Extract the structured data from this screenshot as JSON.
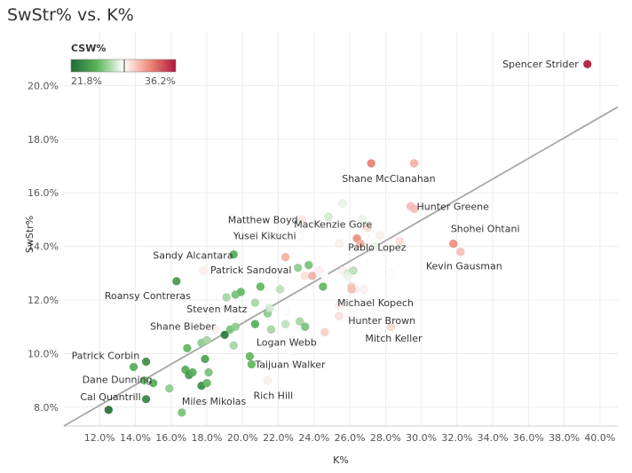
{
  "chart_data": {
    "type": "scatter",
    "title": "SwStr% vs. K%",
    "xlabel": "K%",
    "ylabel": "SwStr%",
    "xlim": [
      10.0,
      41.0
    ],
    "ylim": [
      7.3,
      22.0
    ],
    "x_ticks": [
      "12.0%",
      "14.0%",
      "16.0%",
      "18.0%",
      "20.0%",
      "22.0%",
      "24.0%",
      "26.0%",
      "28.0%",
      "30.0%",
      "32.0%",
      "34.0%",
      "36.0%",
      "38.0%",
      "40.0%"
    ],
    "y_ticks": [
      "8.0%",
      "10.0%",
      "12.0%",
      "14.0%",
      "16.0%",
      "18.0%",
      "20.0%"
    ],
    "grid": true,
    "trendline": {
      "x": [
        10.0,
        41.0
      ],
      "y": [
        7.3,
        19.2
      ]
    },
    "color_legend": {
      "title": "CSW%",
      "min_label": "21.8%",
      "max_label": "36.2%",
      "colors": [
        "#1e6b35",
        "#5bb55b",
        "#ffffff",
        "#f08a7a",
        "#b0163a"
      ],
      "placement": "top-left"
    },
    "labeled_points": [
      {
        "name": "Spencer Strider",
        "x": 39.3,
        "y": 20.8,
        "csw": 36.2
      },
      {
        "name": "Shane McClanahan",
        "x": 27.2,
        "y": 17.1,
        "csw": 33.0
      },
      {
        "name": "Hunter Greene",
        "x": 29.4,
        "y": 15.5,
        "csw": 31.0
      },
      {
        "name": "MacKenzie Gore",
        "x": 27.0,
        "y": 14.7,
        "csw": 30.2
      },
      {
        "name": "Matthew Boyd",
        "x": 23.3,
        "y": 15.0,
        "csw": 29.8
      },
      {
        "name": "Pablo Lopez",
        "x": 26.6,
        "y": 14.1,
        "csw": 31.5
      },
      {
        "name": "Shohei Ohtani",
        "x": 31.8,
        "y": 14.1,
        "csw": 32.5
      },
      {
        "name": "Yusei Kikuchi",
        "x": 23.2,
        "y": 14.4,
        "csw": 29.0
      },
      {
        "name": "Sandy Alcantara",
        "x": 19.5,
        "y": 13.7,
        "csw": 25.0
      },
      {
        "name": "Kevin Gausman",
        "x": 32.2,
        "y": 13.8,
        "csw": 31.0
      },
      {
        "name": "Patrick Sandoval",
        "x": 17.8,
        "y": 13.1,
        "csw": 29.5
      },
      {
        "name": "Roansy Contreras",
        "x": 16.3,
        "y": 12.7,
        "csw": 24.0
      },
      {
        "name": "Michael Kopech",
        "x": 26.1,
        "y": 12.4,
        "csw": 31.0
      },
      {
        "name": "Steven Matz",
        "x": 19.6,
        "y": 12.2,
        "csw": 26.0
      },
      {
        "name": "Hunter Brown",
        "x": 27.2,
        "y": 11.5,
        "csw": 29.0
      },
      {
        "name": "Shane Bieber",
        "x": 18.5,
        "y": 10.9,
        "csw": 29.5
      },
      {
        "name": "Mitch Keller",
        "x": 28.3,
        "y": 11.0,
        "csw": 30.2
      },
      {
        "name": "Logan Webb",
        "x": 24.6,
        "y": 10.8,
        "csw": 30.5
      },
      {
        "name": "Patrick Corbin",
        "x": 14.6,
        "y": 9.7,
        "csw": 23.5
      },
      {
        "name": "Taijuan Walker",
        "x": 20.5,
        "y": 9.6,
        "csw": 25.5
      },
      {
        "name": "Dane Dunning",
        "x": 15.0,
        "y": 8.9,
        "csw": 25.0
      },
      {
        "name": "Rich Hill",
        "x": 21.4,
        "y": 9.0,
        "csw": 29.5
      },
      {
        "name": "Cal Quantrill",
        "x": 12.5,
        "y": 7.9,
        "csw": 22.0
      },
      {
        "name": "Miles Mikolas",
        "x": 16.6,
        "y": 7.8,
        "csw": 26.0
      }
    ],
    "unlabeled_points": [
      {
        "x": 14.6,
        "y": 8.3,
        "csw": 23.0
      },
      {
        "x": 13.9,
        "y": 9.5,
        "csw": 25.0
      },
      {
        "x": 14.5,
        "y": 9.0,
        "csw": 25.5
      },
      {
        "x": 15.9,
        "y": 8.7,
        "csw": 26.5
      },
      {
        "x": 16.8,
        "y": 9.4,
        "csw": 25.0
      },
      {
        "x": 17.0,
        "y": 9.2,
        "csw": 24.0
      },
      {
        "x": 17.2,
        "y": 9.3,
        "csw": 25.0
      },
      {
        "x": 17.7,
        "y": 8.8,
        "csw": 23.5
      },
      {
        "x": 18.0,
        "y": 8.9,
        "csw": 25.5
      },
      {
        "x": 18.1,
        "y": 9.3,
        "csw": 26.0
      },
      {
        "x": 17.9,
        "y": 9.8,
        "csw": 24.5
      },
      {
        "x": 16.9,
        "y": 10.2,
        "csw": 25.5
      },
      {
        "x": 17.7,
        "y": 10.4,
        "csw": 26.5
      },
      {
        "x": 18.0,
        "y": 10.5,
        "csw": 27.0
      },
      {
        "x": 19.0,
        "y": 10.7,
        "csw": 22.5
      },
      {
        "x": 19.3,
        "y": 10.9,
        "csw": 26.0
      },
      {
        "x": 19.6,
        "y": 11.0,
        "csw": 26.5
      },
      {
        "x": 19.5,
        "y": 10.3,
        "csw": 27.0
      },
      {
        "x": 20.4,
        "y": 9.9,
        "csw": 25.5
      },
      {
        "x": 20.7,
        "y": 11.1,
        "csw": 25.0
      },
      {
        "x": 21.4,
        "y": 11.5,
        "csw": 26.5
      },
      {
        "x": 21.6,
        "y": 10.9,
        "csw": 27.0
      },
      {
        "x": 22.4,
        "y": 11.1,
        "csw": 27.5
      },
      {
        "x": 23.2,
        "y": 11.2,
        "csw": 27.0
      },
      {
        "x": 23.5,
        "y": 11.0,
        "csw": 26.0
      },
      {
        "x": 22.7,
        "y": 10.1,
        "csw": 29.0
      },
      {
        "x": 19.1,
        "y": 12.1,
        "csw": 27.0
      },
      {
        "x": 19.9,
        "y": 12.3,
        "csw": 25.5
      },
      {
        "x": 20.7,
        "y": 11.9,
        "csw": 27.0
      },
      {
        "x": 21.0,
        "y": 12.5,
        "csw": 25.5
      },
      {
        "x": 21.5,
        "y": 11.7,
        "csw": 28.0
      },
      {
        "x": 22.1,
        "y": 12.4,
        "csw": 27.5
      },
      {
        "x": 22.4,
        "y": 11.6,
        "csw": 29.0
      },
      {
        "x": 23.1,
        "y": 13.2,
        "csw": 26.5
      },
      {
        "x": 23.5,
        "y": 12.9,
        "csw": 30.0
      },
      {
        "x": 23.7,
        "y": 13.3,
        "csw": 26.0
      },
      {
        "x": 23.9,
        "y": 12.9,
        "csw": 31.5
      },
      {
        "x": 24.3,
        "y": 13.1,
        "csw": 29.5
      },
      {
        "x": 24.5,
        "y": 12.5,
        "csw": 25.5
      },
      {
        "x": 24.6,
        "y": 12.9,
        "csw": 29.0
      },
      {
        "x": 22.4,
        "y": 13.6,
        "csw": 31.5
      },
      {
        "x": 25.6,
        "y": 13.1,
        "csw": 29.5
      },
      {
        "x": 25.9,
        "y": 13.0,
        "csw": 28.0
      },
      {
        "x": 26.2,
        "y": 13.1,
        "csw": 27.5
      },
      {
        "x": 25.4,
        "y": 14.1,
        "csw": 29.5
      },
      {
        "x": 25.9,
        "y": 12.9,
        "csw": 28.5
      },
      {
        "x": 26.1,
        "y": 12.5,
        "csw": 30.5
      },
      {
        "x": 26.3,
        "y": 12.4,
        "csw": 29.5
      },
      {
        "x": 26.8,
        "y": 12.4,
        "csw": 29.5
      },
      {
        "x": 25.4,
        "y": 11.8,
        "csw": 29.5
      },
      {
        "x": 25.4,
        "y": 11.4,
        "csw": 30.0
      },
      {
        "x": 26.2,
        "y": 11.7,
        "csw": 29.0
      },
      {
        "x": 26.4,
        "y": 14.3,
        "csw": 32.5
      },
      {
        "x": 27.3,
        "y": 14.4,
        "csw": 29.0
      },
      {
        "x": 27.7,
        "y": 14.4,
        "csw": 29.5
      },
      {
        "x": 28.8,
        "y": 14.2,
        "csw": 30.0
      },
      {
        "x": 28.3,
        "y": 13.0,
        "csw": 29.0
      },
      {
        "x": 27.4,
        "y": 14.0,
        "csw": 28.5
      },
      {
        "x": 29.6,
        "y": 17.1,
        "csw": 31.5
      },
      {
        "x": 29.6,
        "y": 15.4,
        "csw": 31.0
      },
      {
        "x": 25.6,
        "y": 15.6,
        "csw": 28.5
      },
      {
        "x": 24.8,
        "y": 15.1,
        "csw": 28.0
      },
      {
        "x": 26.7,
        "y": 15.0,
        "csw": 28.5
      }
    ]
  }
}
